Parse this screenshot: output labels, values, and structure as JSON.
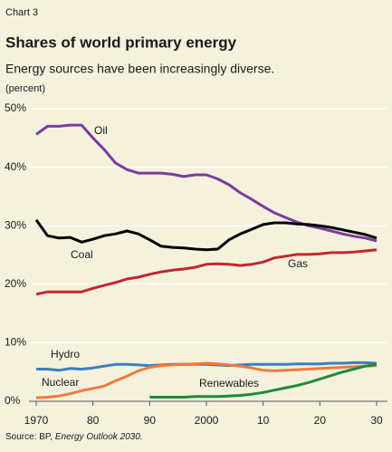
{
  "chart_data": {
    "type": "line",
    "label": "Chart 3",
    "title": "Shares of world primary energy",
    "subtitle": "Energy sources have been increasingly diverse.",
    "ylabel": "(percent)",
    "source": [
      "Source: BP,",
      "Energy Outlook 2030."
    ],
    "x": [
      1970,
      1972,
      1974,
      1976,
      1978,
      1980,
      1982,
      1984,
      1986,
      1988,
      1990,
      1992,
      1994,
      1996,
      1998,
      2000,
      2002,
      2004,
      2006,
      2008,
      2010,
      2012,
      2014,
      2016,
      2018,
      2020,
      2022,
      2024,
      2026,
      2028,
      2030
    ],
    "xlim": [
      1970,
      2030
    ],
    "xticks": [
      1970,
      {
        "value": 1980,
        "label": "80"
      },
      {
        "value": 1990,
        "label": "90"
      },
      2000,
      {
        "value": 2010,
        "label": "10"
      },
      {
        "value": 2020,
        "label": "20"
      },
      {
        "value": 2030,
        "label": "30"
      }
    ],
    "ylim": [
      0,
      50
    ],
    "yticks": [
      {
        "value": 0,
        "label": "0%"
      },
      {
        "value": 10,
        "label": "10%"
      },
      {
        "value": 20,
        "label": "20%"
      },
      {
        "value": 30,
        "label": "30%"
      },
      {
        "value": 40,
        "label": "40%"
      },
      {
        "value": 50,
        "label": "50%"
      }
    ],
    "grid": true,
    "series": [
      {
        "name": "Oil",
        "color": "#7a3c9e",
        "values": [
          45.6,
          47,
          47,
          47.2,
          47.2,
          45,
          43,
          40.7,
          39.6,
          39,
          39,
          39,
          38.8,
          38.4,
          38.7,
          38.7,
          38,
          37,
          35.6,
          34.5,
          33.3,
          32.2,
          31.4,
          30.6,
          30,
          29.6,
          29.1,
          28.6,
          28.2,
          27.9,
          27.4
        ]
      },
      {
        "name": "Coal",
        "color": "#000000",
        "values": [
          31,
          28.3,
          27.9,
          28,
          27.2,
          27.7,
          28.3,
          28.6,
          29.1,
          28.6,
          27.6,
          26.5,
          26.3,
          26.2,
          26,
          25.9,
          26,
          27.6,
          28.6,
          29.4,
          30.2,
          30.5,
          30.5,
          30.3,
          30.2,
          30,
          29.7,
          29.3,
          28.9,
          28.5,
          27.9
        ]
      },
      {
        "name": "Gas",
        "color": "#c4262e",
        "values": [
          18.3,
          18.7,
          18.7,
          18.7,
          18.7,
          19.3,
          19.8,
          20.3,
          20.9,
          21.2,
          21.7,
          22.1,
          22.4,
          22.6,
          22.9,
          23.4,
          23.5,
          23.4,
          23.2,
          23.4,
          23.8,
          24.5,
          24.8,
          25.1,
          25.1,
          25.2,
          25.4,
          25.4,
          25.5,
          25.7,
          25.9
        ]
      },
      {
        "name": "Hydro",
        "color": "#3b7fc0",
        "values": [
          5.5,
          5.5,
          5.3,
          5.6,
          5.5,
          5.7,
          6,
          6.3,
          6.3,
          6.2,
          6.1,
          6.2,
          6.3,
          6.3,
          6.3,
          6.3,
          6.2,
          6.1,
          6.2,
          6.3,
          6.3,
          6.3,
          6.3,
          6.4,
          6.4,
          6.4,
          6.5,
          6.5,
          6.6,
          6.6,
          6.5
        ]
      },
      {
        "name": "Nuclear",
        "color": "#f07a3a",
        "values": [
          0.6,
          0.7,
          0.9,
          1.3,
          1.8,
          2.2,
          2.6,
          3.5,
          4.3,
          5.2,
          5.8,
          6.1,
          6.2,
          6.3,
          6.4,
          6.5,
          6.4,
          6.2,
          6,
          5.7,
          5.3,
          5.2,
          5.3,
          5.4,
          5.5,
          5.6,
          5.7,
          5.8,
          5.9,
          6,
          6.1
        ]
      },
      {
        "name": "Renewables",
        "color": "#1f8a3c",
        "values": [
          null,
          null,
          null,
          null,
          null,
          null,
          null,
          null,
          null,
          null,
          0.7,
          0.7,
          0.7,
          0.7,
          0.8,
          0.8,
          0.8,
          0.9,
          1,
          1.2,
          1.5,
          1.9,
          2.3,
          2.7,
          3.2,
          3.8,
          4.4,
          5,
          5.5,
          6,
          6.3
        ]
      }
    ]
  }
}
